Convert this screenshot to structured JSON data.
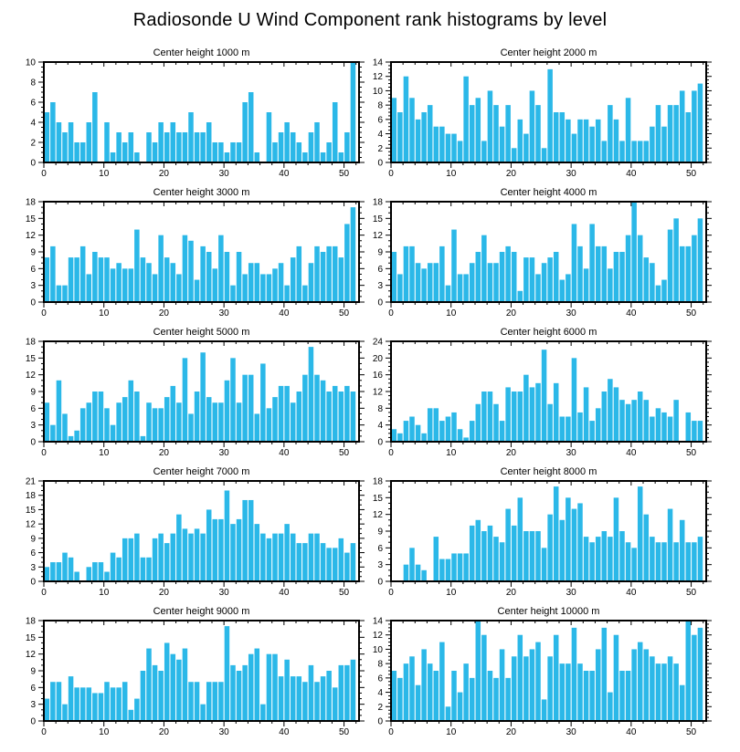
{
  "title": "Radiosonde U Wind Component rank histograms by level",
  "bar_color": "#2bb8e8",
  "frame_color": "#000000",
  "chart_data": [
    {
      "type": "bar",
      "title": "Center height 1000 m",
      "ylim": [
        0,
        10
      ],
      "ytick_step": 2,
      "xticks": [
        0,
        10,
        20,
        30,
        40,
        50
      ],
      "xlabel": "",
      "ylabel": "",
      "grid": false,
      "values": [
        5,
        6,
        4,
        3,
        4,
        2,
        2,
        4,
        7,
        0,
        4,
        1,
        3,
        2,
        3,
        1,
        0,
        3,
        2,
        4,
        3,
        4,
        3,
        3,
        5,
        3,
        3,
        4,
        2,
        2,
        1,
        2,
        2,
        6,
        7,
        1,
        0,
        5,
        2,
        3,
        4,
        3,
        2,
        1,
        3,
        4,
        1,
        2,
        6,
        1,
        3,
        10
      ]
    },
    {
      "type": "bar",
      "title": "Center height 2000 m",
      "ylim": [
        0,
        14
      ],
      "ytick_step": 2,
      "xticks": [
        0,
        10,
        20,
        30,
        40,
        50
      ],
      "xlabel": "",
      "ylabel": "",
      "grid": false,
      "values": [
        9,
        7,
        12,
        9,
        6,
        7,
        8,
        5,
        5,
        4,
        4,
        3,
        12,
        8,
        9,
        3,
        10,
        8,
        5,
        8,
        2,
        6,
        4,
        10,
        8,
        2,
        13,
        7,
        7,
        6,
        4,
        6,
        6,
        5,
        6,
        3,
        8,
        6,
        3,
        9,
        3,
        3,
        3,
        5,
        8,
        5,
        8,
        8,
        10,
        7,
        10,
        11
      ]
    },
    {
      "type": "bar",
      "title": "Center height 3000 m",
      "ylim": [
        0,
        18
      ],
      "ytick_step": 3,
      "xticks": [
        0,
        10,
        20,
        30,
        40,
        50
      ],
      "xlabel": "",
      "ylabel": "",
      "grid": false,
      "values": [
        8,
        10,
        3,
        3,
        8,
        8,
        10,
        5,
        9,
        8,
        8,
        6,
        7,
        6,
        6,
        13,
        8,
        7,
        5,
        12,
        8,
        7,
        5,
        12,
        11,
        4,
        10,
        9,
        6,
        12,
        9,
        3,
        9,
        5,
        7,
        7,
        5,
        5,
        6,
        7,
        3,
        8,
        10,
        3,
        7,
        10,
        9,
        10,
        10,
        8,
        14,
        17
      ]
    },
    {
      "type": "bar",
      "title": "Center height 4000 m",
      "ylim": [
        0,
        18
      ],
      "ytick_step": 3,
      "xticks": [
        0,
        10,
        20,
        30,
        40,
        50
      ],
      "xlabel": "",
      "ylabel": "",
      "grid": false,
      "values": [
        9,
        5,
        10,
        10,
        7,
        6,
        7,
        7,
        10,
        3,
        13,
        5,
        5,
        7,
        9,
        12,
        7,
        7,
        9,
        10,
        9,
        2,
        8,
        8,
        5,
        7,
        8,
        9,
        4,
        5,
        14,
        10,
        6,
        14,
        10,
        10,
        6,
        9,
        9,
        12,
        18,
        12,
        8,
        7,
        3,
        4,
        13,
        15,
        10,
        10,
        12,
        15
      ]
    },
    {
      "type": "bar",
      "title": "Center height 5000 m",
      "ylim": [
        0,
        18
      ],
      "ytick_step": 3,
      "xticks": [
        0,
        10,
        20,
        30,
        40,
        50
      ],
      "xlabel": "",
      "ylabel": "",
      "grid": false,
      "values": [
        7,
        3,
        11,
        5,
        1,
        2,
        6,
        7,
        9,
        9,
        6,
        3,
        7,
        8,
        11,
        9,
        1,
        7,
        6,
        6,
        8,
        10,
        7,
        15,
        5,
        9,
        16,
        8,
        7,
        7,
        11,
        15,
        7,
        12,
        12,
        5,
        14,
        6,
        8,
        10,
        10,
        7,
        9,
        12,
        17,
        12,
        11,
        9,
        10,
        9,
        10,
        9
      ]
    },
    {
      "type": "bar",
      "title": "Center height 6000 m",
      "ylim": [
        0,
        24
      ],
      "ytick_step": 4,
      "xticks": [
        0,
        10,
        20,
        30,
        40,
        50
      ],
      "xlabel": "",
      "ylabel": "",
      "grid": false,
      "values": [
        3,
        2,
        5,
        6,
        4,
        2,
        8,
        8,
        5,
        6,
        7,
        3,
        1,
        5,
        9,
        12,
        12,
        9,
        5,
        13,
        12,
        12,
        16,
        13,
        14,
        22,
        9,
        14,
        6,
        6,
        20,
        7,
        13,
        5,
        8,
        12,
        15,
        13,
        10,
        9,
        10,
        12,
        10,
        6,
        8,
        7,
        6,
        10,
        0,
        7,
        5,
        5
      ]
    },
    {
      "type": "bar",
      "title": "Center height 7000 m",
      "ylim": [
        0,
        21
      ],
      "ytick_step": 3,
      "xticks": [
        0,
        10,
        20,
        30,
        40,
        50
      ],
      "xlabel": "",
      "ylabel": "",
      "grid": false,
      "values": [
        3,
        4,
        4,
        6,
        5,
        2,
        0,
        3,
        4,
        4,
        2,
        6,
        5,
        9,
        9,
        10,
        5,
        5,
        9,
        10,
        8,
        10,
        14,
        11,
        10,
        11,
        10,
        15,
        13,
        13,
        19,
        12,
        13,
        17,
        17,
        12,
        10,
        9,
        10,
        10,
        12,
        10,
        8,
        8,
        10,
        10,
        8,
        7,
        7,
        9,
        6,
        8
      ]
    },
    {
      "type": "bar",
      "title": "Center height 8000 m",
      "ylim": [
        0,
        18
      ],
      "ytick_step": 3,
      "xticks": [
        0,
        10,
        20,
        30,
        40,
        50
      ],
      "xlabel": "",
      "ylabel": "",
      "grid": false,
      "values": [
        0,
        0,
        3,
        6,
        3,
        2,
        0,
        8,
        4,
        4,
        5,
        5,
        5,
        10,
        11,
        9,
        10,
        8,
        7,
        13,
        10,
        15,
        9,
        9,
        9,
        6,
        12,
        17,
        11,
        15,
        13,
        14,
        8,
        7,
        8,
        9,
        8,
        15,
        9,
        7,
        6,
        17,
        12,
        8,
        7,
        7,
        13,
        7,
        11,
        7,
        7,
        8
      ]
    },
    {
      "type": "bar",
      "title": "Center height 9000 m",
      "ylim": [
        0,
        18
      ],
      "ytick_step": 3,
      "xticks": [
        0,
        10,
        20,
        30,
        40,
        50
      ],
      "xlabel": "",
      "ylabel": "",
      "grid": false,
      "values": [
        4,
        7,
        7,
        3,
        8,
        6,
        6,
        6,
        5,
        5,
        7,
        6,
        6,
        7,
        2,
        4,
        9,
        13,
        10,
        9,
        14,
        12,
        11,
        13,
        7,
        7,
        3,
        7,
        7,
        7,
        17,
        10,
        9,
        10,
        12,
        13,
        3,
        12,
        12,
        8,
        11,
        8,
        8,
        7,
        10,
        7,
        8,
        9,
        6,
        10,
        10,
        11
      ]
    },
    {
      "type": "bar",
      "title": "Center height 10000 m",
      "ylim": [
        0,
        14
      ],
      "ytick_step": 2,
      "xticks": [
        0,
        10,
        20,
        30,
        40,
        50
      ],
      "xlabel": "",
      "ylabel": "",
      "grid": false,
      "values": [
        7,
        6,
        8,
        9,
        5,
        10,
        8,
        7,
        11,
        2,
        7,
        4,
        8,
        6,
        14,
        12,
        7,
        6,
        10,
        6,
        9,
        12,
        9,
        10,
        11,
        3,
        9,
        12,
        8,
        8,
        13,
        8,
        7,
        7,
        10,
        13,
        4,
        12,
        7,
        7,
        10,
        11,
        10,
        9,
        8,
        8,
        9,
        8,
        5,
        14,
        12,
        13
      ]
    }
  ]
}
